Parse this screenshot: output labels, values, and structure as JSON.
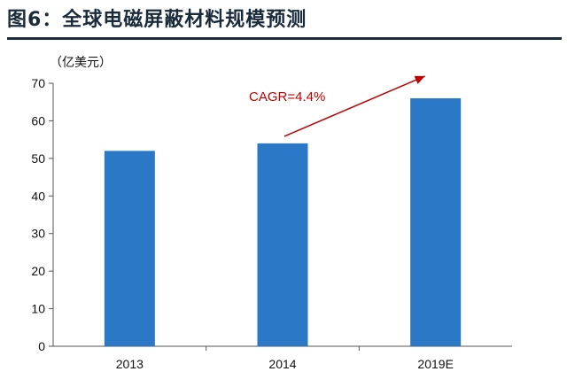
{
  "header": {
    "title": "图6：全球电磁屏蔽材料规模预测"
  },
  "chart_data": {
    "type": "bar",
    "title": "图6：全球电磁屏蔽材料规模预测",
    "ylabel": "（亿美元）",
    "xlabel": "",
    "categories": [
      "2013",
      "2014",
      "2019E"
    ],
    "values": [
      52,
      54,
      66
    ],
    "ylim": [
      0,
      70
    ],
    "yticks": [
      0,
      10,
      20,
      30,
      40,
      50,
      60,
      70
    ],
    "bar_color": "#2b78c6",
    "grid": false,
    "legend": "none",
    "annotation": {
      "text": "CAGR=4.4%",
      "color": "#c00000",
      "from_category": "2014",
      "to_category": "2019E"
    }
  }
}
